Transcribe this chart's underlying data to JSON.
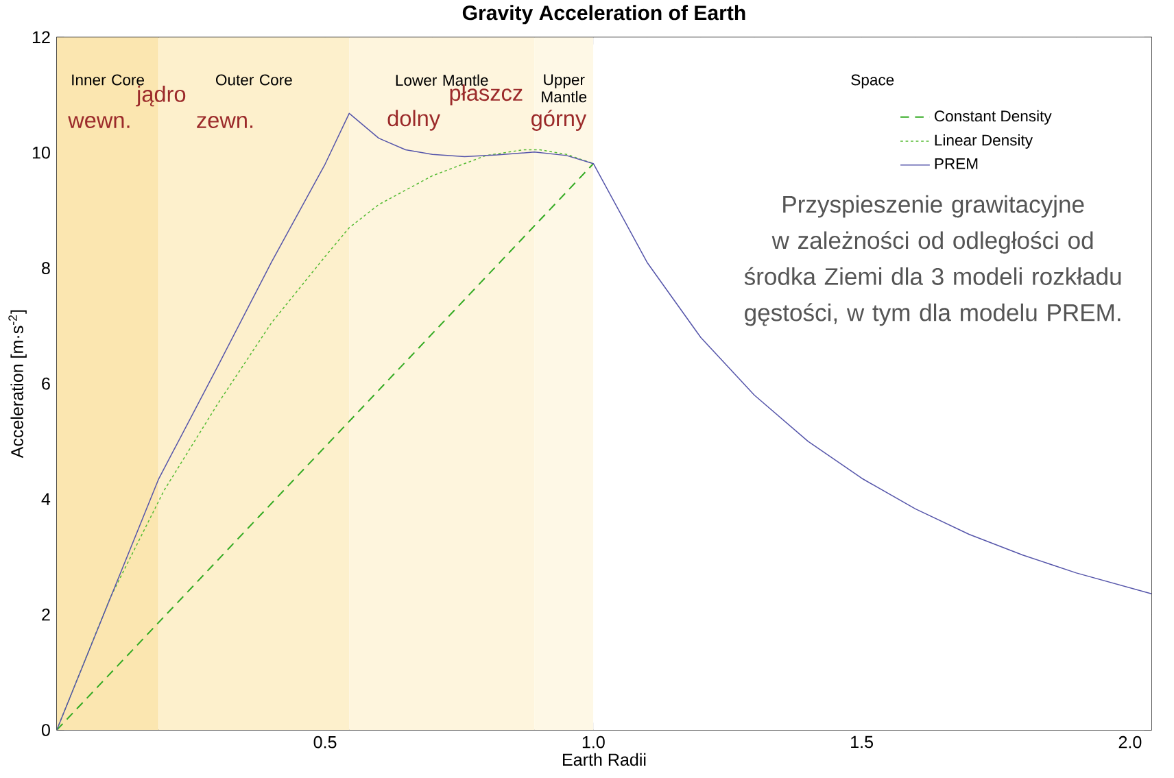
{
  "chart_data": {
    "type": "line",
    "title": "Gravity Acceleration of Earth",
    "xlabel": "Earth Radii",
    "ylabel": "Acceleration [m·s$^{-2}$]",
    "xlim": [
      0,
      2.04
    ],
    "ylim": [
      0,
      12
    ],
    "xticks": [
      {
        "value": 0.5,
        "label": "0.5"
      },
      {
        "value": 1,
        "label": "1.0"
      },
      {
        "value": 1.5,
        "label": "1.5"
      },
      {
        "value": 2,
        "label": "2.0"
      }
    ],
    "yticks": [
      0,
      2,
      4,
      6,
      8,
      10,
      12
    ],
    "grid": false,
    "legend": "top right",
    "marker": "none",
    "series": [
      {
        "name": "Constant Density",
        "color": "#33aa22",
        "line_style": "dashed",
        "x": [
          0,
          1.0
        ],
        "values": [
          0,
          9.81
        ]
      },
      {
        "name": "Linear Density",
        "color": "#55bb33",
        "line_style": "dotted",
        "x": [
          0,
          0.1,
          0.2,
          0.3,
          0.4,
          0.5,
          0.545,
          0.6,
          0.7,
          0.8,
          0.87,
          0.9,
          0.95,
          1.0
        ],
        "values": [
          0,
          2.3,
          4.15,
          5.65,
          7.05,
          8.2,
          8.7,
          9.1,
          9.6,
          9.95,
          10.05,
          10.05,
          9.97,
          9.81
        ]
      },
      {
        "name": "PREM",
        "color": "#5555aa",
        "line_style": "solid",
        "x": [
          0,
          0.19,
          0.3,
          0.4,
          0.5,
          0.545,
          0.6,
          0.65,
          0.7,
          0.76,
          0.82,
          0.89,
          0.95,
          1.0,
          1.1,
          1.2,
          1.3,
          1.4,
          1.5,
          1.6,
          1.7,
          1.8,
          1.9,
          2.04
        ],
        "values": [
          0,
          4.35,
          6.3,
          8.1,
          9.8,
          10.68,
          10.25,
          10.05,
          9.97,
          9.93,
          9.96,
          10.01,
          9.95,
          9.81,
          8.1,
          6.8,
          5.8,
          5.0,
          4.36,
          3.83,
          3.39,
          3.03,
          2.72,
          2.36
        ]
      }
    ],
    "bands": [
      {
        "axis": "x",
        "from": 0,
        "to": 0.19,
        "label": "Inner Core",
        "color": "#fbe6b0"
      },
      {
        "axis": "x",
        "from": 0.19,
        "to": 0.545,
        "label": "Outer Core",
        "color": "#fdf0cc"
      },
      {
        "axis": "x",
        "from": 0.545,
        "to": 0.89,
        "label": "Lower Mantle",
        "color": "#fef5dd"
      },
      {
        "axis": "x",
        "from": 0.89,
        "to": 1.0,
        "label": "Upper Mantle",
        "color": "#fef8e6"
      },
      {
        "axis": "x",
        "from": 1.0,
        "to": 2.04,
        "label": "Space",
        "color": "#ffffff"
      }
    ],
    "annotations": [
      "jądro",
      "wewn.",
      "zewn.",
      "płaszcz",
      "dolny",
      "górny",
      "Przyspieszenie grawitacyjne w zależności od odległości od środka Ziemi dla 3 modeli rozkładu gęstości, w tym dla modelu PREM."
    ]
  }
}
